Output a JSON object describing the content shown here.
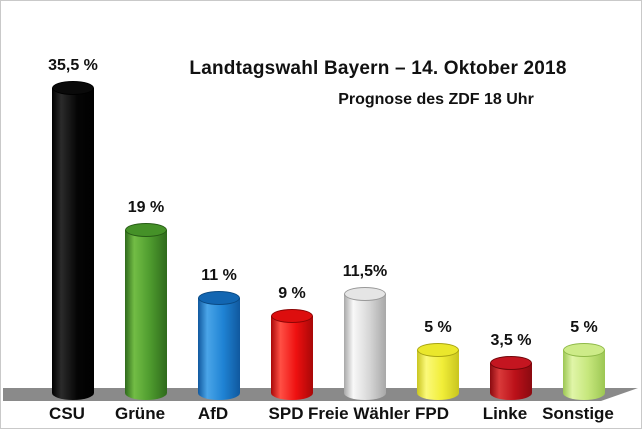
{
  "frame": {
    "background": "#ffffff",
    "border_color": "#c9c9c9"
  },
  "chart_data": {
    "type": "bar",
    "style": "3d-cylinder",
    "title": "Landtagswahl Bayern – 14. Oktober 2018",
    "subtitle": "Prognose des ZDF 18 Uhr",
    "unit": "%",
    "categories": [
      "CSU",
      "Grüne",
      "AfD",
      "SPD",
      "Freie Wähler",
      "FPD",
      "Linke",
      "Sonstige"
    ],
    "keys": [
      "csu",
      "gruene",
      "afd",
      "spd",
      "freie-waehler",
      "fpd",
      "linke",
      "sonstige"
    ],
    "values": [
      35.5,
      19,
      11,
      9,
      11.5,
      5,
      3.5,
      5
    ],
    "value_labels": [
      "35,5 %",
      "19 %",
      "11 %",
      "9 %",
      "11,5%",
      "5 %",
      "3,5 %",
      "5 %"
    ],
    "colors": [
      {
        "body": "#050505",
        "light": "#2b2b2b",
        "dark": "#000000",
        "cap": "#0a0a0a",
        "rim": "#000000"
      },
      {
        "body": "#4e9b2e",
        "light": "#72bd45",
        "dark": "#2f6a1c",
        "cap": "#459128",
        "rim": "#275c15"
      },
      {
        "body": "#1f83d4",
        "light": "#4aa5e8",
        "dark": "#10589e",
        "cap": "#1266b2",
        "rim": "#0a4a84"
      },
      {
        "body": "#ee1010",
        "light": "#ff5045",
        "dark": "#a80808",
        "cap": "#dd0e0e",
        "rim": "#8c0505"
      },
      {
        "body": "#d7d7d7",
        "light": "#f8f8f8",
        "dark": "#a8a8a8",
        "cap": "#e5e5e5",
        "rim": "#999999"
      },
      {
        "body": "#f1ee38",
        "light": "#fbf97a",
        "dark": "#c9c51f",
        "cap": "#eae72c",
        "rim": "#a8a412"
      },
      {
        "body": "#bb1019",
        "light": "#d93a3a",
        "dark": "#8a0a10",
        "cap": "#c41520",
        "rim": "#6f0609"
      },
      {
        "body": "#c6e77c",
        "light": "#e0f5a8",
        "dark": "#9cc653",
        "cap": "#cdeb88",
        "rim": "#8fb948"
      }
    ],
    "floor_color": "#8a8a8a",
    "ylim": [
      0,
      40
    ],
    "grid": false,
    "legend": false,
    "axes_visible": false
  }
}
